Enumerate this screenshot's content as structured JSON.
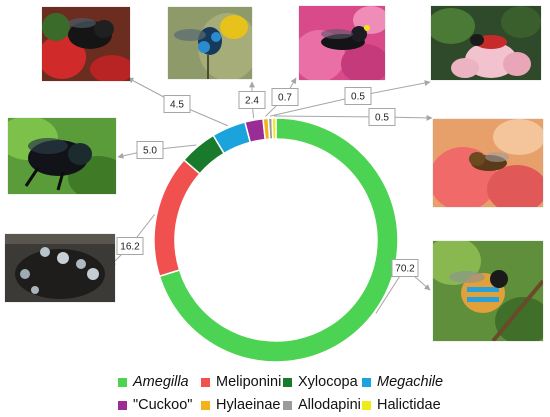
{
  "chart_data": {
    "type": "pie",
    "style": "donut",
    "series": [
      {
        "name": "Amegilla",
        "value": 70.2,
        "color": "#4dd353",
        "italic": true,
        "label": "70.2"
      },
      {
        "name": "Meliponini",
        "value": 16.2,
        "color": "#f0514f",
        "italic": false,
        "label": "16.2"
      },
      {
        "name": "Xylocopa",
        "value": 5.0,
        "color": "#1a7a2c",
        "italic": false,
        "label": "5.0"
      },
      {
        "name": "Megachile",
        "value": 4.5,
        "color": "#1ba3dc",
        "italic": true,
        "label": "4.5"
      },
      {
        "name": "\"Cuckoo\"",
        "value": 2.4,
        "color": "#9a2c95",
        "italic": false,
        "label": "2.4"
      },
      {
        "name": "Hylaeinae",
        "value": 0.7,
        "color": "#f4b21a",
        "italic": false,
        "label": "0.7"
      },
      {
        "name": "Allodapini",
        "value": 0.5,
        "color": "#9b9b9b",
        "italic": false,
        "label": "0.5"
      },
      {
        "name": "Halictidae",
        "value": 0.5,
        "color": "#f1ea19",
        "italic": false,
        "label": "0.5"
      }
    ],
    "legend_position": "bottom"
  },
  "photos": [
    {
      "subject": "Meliponini",
      "icon": "bee-photo-stingless"
    },
    {
      "subject": "Xylocopa",
      "icon": "bee-photo-carpenter"
    },
    {
      "subject": "Megachile",
      "icon": "bee-photo-leafcutter"
    },
    {
      "subject": "Cuckoo",
      "icon": "bee-photo-cuckoo"
    },
    {
      "subject": "Hylaeinae",
      "icon": "bee-photo-hylaeine"
    },
    {
      "subject": "Allodapini",
      "icon": "bee-photo-allodapine"
    },
    {
      "subject": "Halictidae",
      "icon": "bee-photo-halictid"
    },
    {
      "subject": "Amegilla",
      "icon": "bee-photo-blue-banded"
    }
  ]
}
